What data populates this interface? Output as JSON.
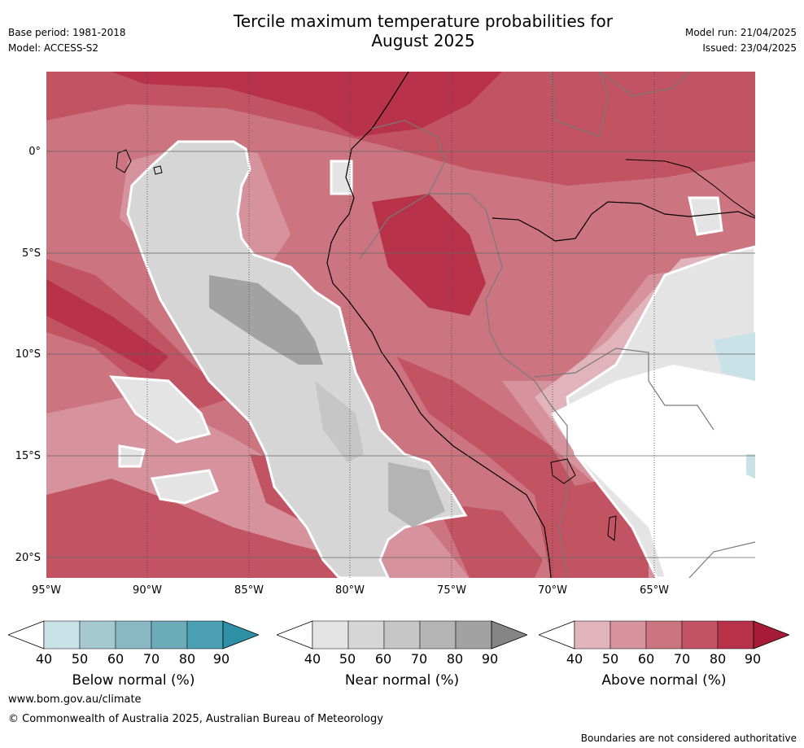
{
  "header": {
    "title_line1": "Tercile maximum temperature probabilities for",
    "title_line2": "August 2025",
    "base_period": "Base period: 1981-2018",
    "model": "Model: ACCESS-S2",
    "model_run": "Model run: 21/04/2025",
    "issued": "Issued: 23/04/2025"
  },
  "map": {
    "lat_labels": [
      "0°",
      "5°S",
      "10°S",
      "15°S",
      "20°S"
    ],
    "lon_labels": [
      "95°W",
      "90°W",
      "85°W",
      "80°W",
      "75°W",
      "70°W",
      "65°W"
    ]
  },
  "colorbars": {
    "ticks": [
      "40",
      "50",
      "60",
      "70",
      "80",
      "90"
    ],
    "below": {
      "label": "Below normal (%)",
      "colors": [
        "#ffffff",
        "#c9e2e8",
        "#a6c9cf",
        "#88b8c3",
        "#6cabb8",
        "#4aa0b2",
        "#2e8fa5"
      ]
    },
    "near": {
      "label": "Near normal (%)",
      "colors": [
        "#ffffff",
        "#e4e4e4",
        "#d6d6d6",
        "#c6c6c6",
        "#b4b4b4",
        "#a2a2a2",
        "#858585"
      ]
    },
    "above": {
      "label": "Above normal (%)",
      "colors": [
        "#ffffff",
        "#e1b4bb",
        "#d6939d",
        "#cc7480",
        "#c25363",
        "#b8334a",
        "#a61c37"
      ]
    }
  },
  "footer": {
    "url": "www.bom.gov.au/climate",
    "copyright": "© Commonwealth of Australia 2025, Australian Bureau of Meteorology",
    "disclaimer": "Boundaries are not considered authoritative"
  }
}
